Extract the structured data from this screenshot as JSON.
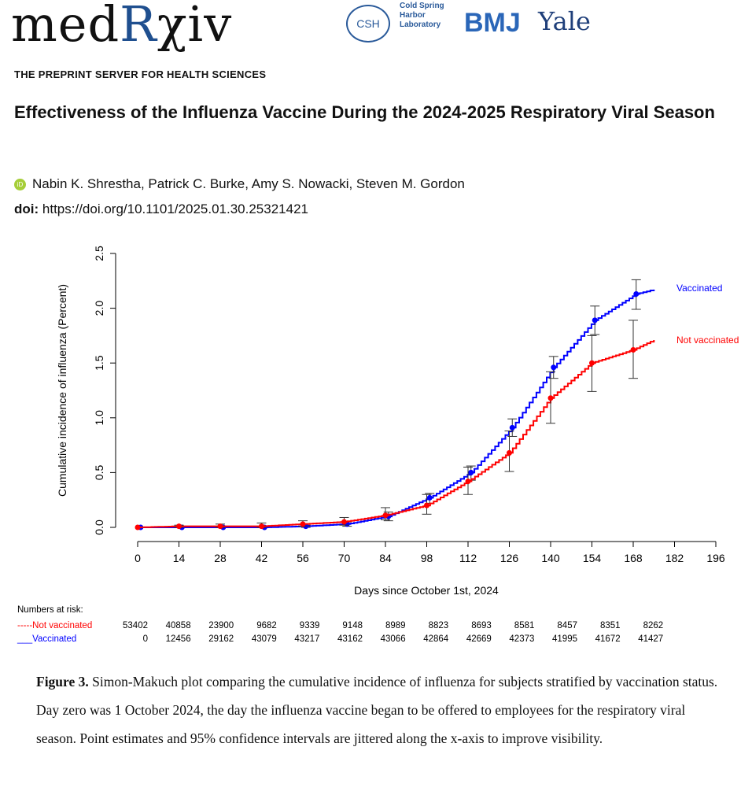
{
  "header": {
    "logo": "medRχiv",
    "partner_csh": "CSH",
    "partner_csh_text": "Cold Spring Harbor Laboratory",
    "partner_bmj": "BMJ",
    "partner_yale": "Yale",
    "tagline": "THE PREPRINT SERVER FOR HEALTH SCIENCES"
  },
  "paper": {
    "title": "Effectiveness of the Influenza Vaccine During the 2024-2025 Respiratory Viral Season",
    "authors": "Nabin K. Shrestha, Patrick C. Burke, Amy S. Nowacki, Steven M. Gordon",
    "doi_label": "doi:",
    "doi": "https://doi.org/10.1101/2025.01.30.25321421"
  },
  "chart_data": {
    "type": "line",
    "xlabel": "Days since October 1st, 2024",
    "ylabel": "Cumulative incidence of influenza (Percent)",
    "xlim": [
      0,
      196
    ],
    "ylim": [
      0,
      2.5
    ],
    "xticks": [
      0,
      14,
      28,
      42,
      56,
      70,
      84,
      98,
      112,
      126,
      140,
      154,
      168,
      182,
      196
    ],
    "yticks": [
      "0.0",
      "0.5",
      "1.0",
      "1.5",
      "2.0",
      "2.5"
    ],
    "grid": false,
    "series": [
      {
        "name": "Vaccinated",
        "color": "#0000ff",
        "x": [
          1,
          15,
          29,
          43,
          57,
          71,
          85,
          99,
          113,
          127,
          141,
          155,
          169,
          175
        ],
        "y": [
          0,
          0,
          0,
          0,
          0.01,
          0.03,
          0.1,
          0.27,
          0.5,
          0.91,
          1.46,
          1.89,
          2.13,
          2.17
        ],
        "ci_low": [
          0,
          0,
          0,
          0,
          0,
          0.01,
          0.06,
          0.22,
          0.43,
          0.83,
          1.36,
          1.76,
          1.99,
          null
        ],
        "ci_high": [
          0,
          0,
          0,
          0,
          0.02,
          0.05,
          0.14,
          0.31,
          0.56,
          0.99,
          1.56,
          2.02,
          2.26,
          null
        ]
      },
      {
        "name": "Not vaccinated",
        "color": "#ff0000",
        "x": [
          0,
          14,
          28,
          42,
          56,
          70,
          84,
          98,
          112,
          126,
          140,
          154,
          168,
          175
        ],
        "y": [
          0,
          0.01,
          0.01,
          0.01,
          0.03,
          0.05,
          0.11,
          0.2,
          0.42,
          0.68,
          1.18,
          1.5,
          1.62,
          1.71
        ],
        "ci_low": [
          0,
          0,
          0,
          0,
          0.01,
          0.02,
          0.07,
          0.12,
          0.3,
          0.51,
          0.95,
          1.24,
          1.36,
          null
        ],
        "ci_high": [
          0,
          0.02,
          0.03,
          0.04,
          0.06,
          0.09,
          0.18,
          0.3,
          0.55,
          0.88,
          1.42,
          1.75,
          1.89,
          null
        ]
      }
    ],
    "risk_table": {
      "title": "Numbers at risk:",
      "rows": [
        {
          "label": "-----Not vaccinated",
          "color": "#ff0000",
          "values": [
            53402,
            40858,
            23900,
            9682,
            9339,
            9148,
            8989,
            8823,
            8693,
            8581,
            8457,
            8351,
            8262
          ]
        },
        {
          "label": "___Vaccinated",
          "color": "#0000ff",
          "values": [
            0,
            12456,
            29162,
            43079,
            43217,
            43162,
            43066,
            42864,
            42669,
            42373,
            41995,
            41672,
            41427
          ]
        }
      ]
    }
  },
  "caption": {
    "label": "Figure 3.",
    "text": " Simon-Makuch plot comparing the cumulative incidence of influenza for subjects stratified by vaccination status. Day zero was 1 October 2024, the day the influenza vaccine began to be offered to employees for the respiratory viral season. Point estimates and 95% confidence intervals are jittered along the x-axis to improve visibility."
  }
}
